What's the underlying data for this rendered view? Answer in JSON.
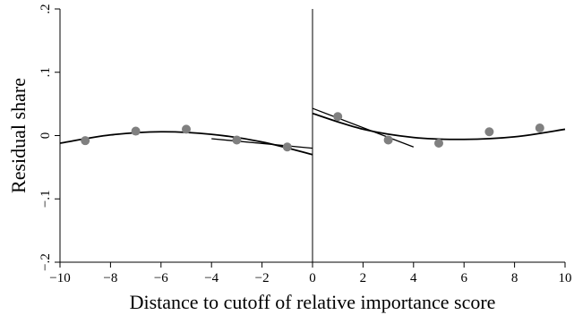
{
  "chart_data": {
    "type": "scatter",
    "title": "",
    "xlabel": "Distance to cutoff of relative importance score",
    "ylabel": "Residual share",
    "xlim": [
      -10,
      10
    ],
    "ylim": [
      -0.2,
      0.2
    ],
    "x_ticks": [
      -10,
      -8,
      -6,
      -4,
      -2,
      0,
      2,
      4,
      6,
      8,
      10
    ],
    "x_tick_labels": [
      "−10",
      "−8",
      "−6",
      "−4",
      "−2",
      "0",
      "2",
      "4",
      "6",
      "8",
      "10"
    ],
    "y_ticks": [
      -0.2,
      -0.1,
      0,
      0.1,
      0.2
    ],
    "y_tick_labels": [
      "−.2",
      "−.1",
      "0",
      ".1",
      ".2"
    ],
    "cutoff_x": 0,
    "grid": false,
    "points": {
      "x": [
        -9,
        -7,
        -5,
        -3,
        -1,
        1,
        3,
        5,
        7,
        9
      ],
      "y": [
        -0.008,
        0.007,
        0.01,
        -0.007,
        -0.018,
        0.03,
        -0.007,
        -0.012,
        0.006,
        0.012
      ]
    },
    "quadratic_fit": {
      "left": {
        "x": [
          -10,
          -8,
          -6,
          -4,
          -2,
          0
        ],
        "y": [
          -0.012,
          0.001,
          0.006,
          0.002,
          -0.01,
          -0.03
        ]
      },
      "right": {
        "x": [
          0,
          2,
          4,
          6,
          8,
          10
        ],
        "y": [
          0.035,
          0.01,
          -0.003,
          -0.006,
          -0.002,
          0.01
        ]
      }
    },
    "linear_fit": {
      "left": {
        "x": [
          -4,
          0
        ],
        "y": [
          -0.005,
          -0.02
        ]
      },
      "right": {
        "x": [
          0,
          4
        ],
        "y": [
          0.043,
          -0.018
        ]
      }
    },
    "colors": {
      "points": "#808080",
      "lines": "#000000"
    }
  }
}
